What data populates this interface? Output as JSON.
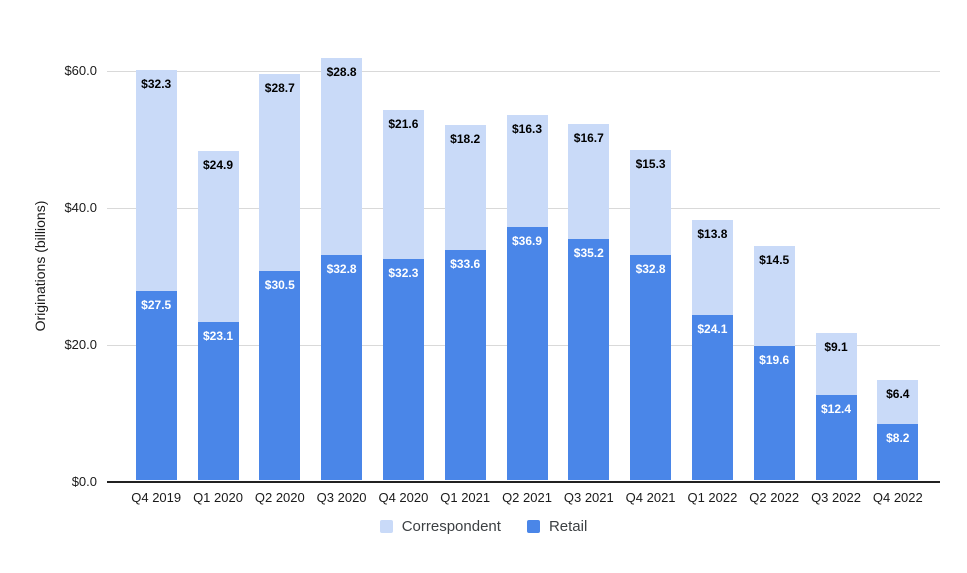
{
  "chart_data": {
    "type": "bar",
    "stacked": true,
    "title": "",
    "xlabel": "",
    "ylabel": "Originations (billions)",
    "categories": [
      "Q4 2019",
      "Q1 2020",
      "Q2 2020",
      "Q3 2020",
      "Q4 2020",
      "Q1 2021",
      "Q2 2021",
      "Q3 2021",
      "Q4 2021",
      "Q1 2022",
      "Q2 2022",
      "Q3 2022",
      "Q4 2022"
    ],
    "series": [
      {
        "name": "Correspondent",
        "color": "#c9daf8",
        "label_color": "dark",
        "values": [
          32.3,
          24.9,
          28.7,
          28.8,
          21.6,
          18.2,
          16.3,
          16.7,
          15.3,
          13.8,
          14.5,
          9.1,
          6.4
        ],
        "labels": [
          "$32.3",
          "$24.9",
          "$28.7",
          "$28.8",
          "$21.6",
          "$18.2",
          "$16.3",
          "$16.7",
          "$15.3",
          "$13.8",
          "$14.5",
          "$9.1",
          "$6.4"
        ]
      },
      {
        "name": "Retail",
        "color": "#4a86e8",
        "label_color": "light",
        "values": [
          27.5,
          23.1,
          30.5,
          32.8,
          32.3,
          33.6,
          36.9,
          35.2,
          32.8,
          24.1,
          19.6,
          12.4,
          8.2
        ],
        "labels": [
          "$27.5",
          "$23.1",
          "$30.5",
          "$32.8",
          "$32.3",
          "$33.6",
          "$36.9",
          "$35.2",
          "$32.8",
          "$24.1",
          "$19.6",
          "$12.4",
          "$8.2"
        ]
      }
    ],
    "yticks": [
      {
        "value": 0,
        "label": "$0.0"
      },
      {
        "value": 20,
        "label": "$20.0"
      },
      {
        "value": 40,
        "label": "$40.0"
      },
      {
        "value": 60,
        "label": "$60.0"
      }
    ],
    "ylim": [
      0,
      63
    ],
    "grid": true,
    "legend_position": "bottom",
    "colors": {
      "gridline": "#d9d9d9",
      "axis_line": "#212121",
      "axis_text": "#1a1a1a",
      "legend_text": "#3c4043"
    }
  }
}
